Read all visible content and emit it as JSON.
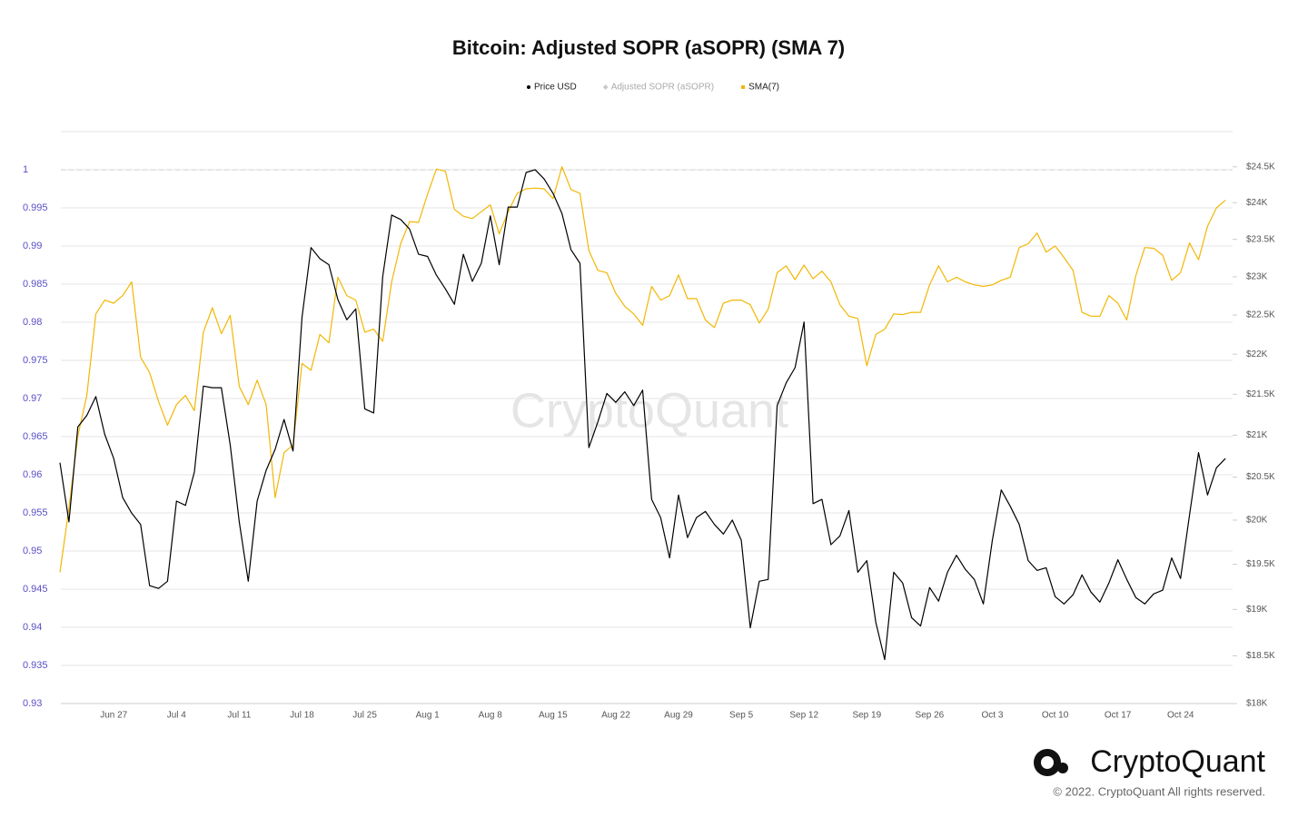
{
  "chart_data": {
    "type": "line",
    "title": "Bitcoin: Adjusted SOPR (aSOPR) (SMA 7)",
    "categories": [
      null,
      null,
      null,
      null,
      null,
      null,
      "Jun 27",
      null,
      null,
      null,
      null,
      null,
      null,
      "Jul 4",
      null,
      null,
      null,
      null,
      null,
      null,
      "Jul 11",
      null,
      null,
      null,
      null,
      null,
      null,
      "Jul 18",
      null,
      null,
      null,
      null,
      null,
      null,
      "Jul 25",
      null,
      null,
      null,
      null,
      null,
      null,
      "Aug 1",
      null,
      null,
      null,
      null,
      null,
      null,
      "Aug 8",
      null,
      null,
      null,
      null,
      null,
      null,
      "Aug 15",
      null,
      null,
      null,
      null,
      null,
      null,
      "Aug 22",
      null,
      null,
      null,
      null,
      null,
      null,
      "Aug 29",
      null,
      null,
      null,
      null,
      null,
      null,
      "Sep 5",
      null,
      null,
      null,
      null,
      null,
      null,
      "Sep 12",
      null,
      null,
      null,
      null,
      null,
      null,
      "Sep 19",
      null,
      null,
      null,
      null,
      null,
      null,
      "Sep 26",
      null,
      null,
      null,
      null,
      null,
      null,
      "Oct 3",
      null,
      null,
      null,
      null,
      null,
      null,
      "Oct 10",
      null,
      null,
      null,
      null,
      null,
      null,
      "Oct 17",
      null,
      null,
      null,
      null,
      null,
      null,
      "Oct 24",
      null,
      null,
      null,
      null,
      null
    ],
    "series": [
      {
        "name": "Price USD",
        "color": "#000000",
        "axis": "y2",
        "visible": true,
        "values": [
          20670,
          19980,
          21100,
          21240,
          21470,
          21010,
          20720,
          20260,
          20080,
          19950,
          19260,
          19230,
          19310,
          20220,
          20170,
          20560,
          21600,
          21580,
          21580,
          20880,
          19980,
          19310,
          20220,
          20580,
          20830,
          21190,
          20810,
          22470,
          23390,
          23240,
          23160,
          22700,
          22440,
          22580,
          21320,
          21270,
          23000,
          23830,
          23770,
          23640,
          23300,
          23270,
          23020,
          22840,
          22640,
          23300,
          22940,
          23180,
          23820,
          23160,
          23940,
          23940,
          24420,
          24460,
          24330,
          24130,
          23850,
          23360,
          23180,
          20850,
          21160,
          21510,
          21400,
          21530,
          21360,
          21550,
          20240,
          20030,
          19570,
          20290,
          19800,
          20030,
          20100,
          19950,
          19840,
          20000,
          19770,
          18800,
          19310,
          19330,
          21360,
          21640,
          21830,
          22410,
          20190,
          20240,
          19720,
          19820,
          20110,
          19410,
          19540,
          18860,
          18460,
          19410,
          19290,
          18910,
          18820,
          19240,
          19090,
          19410,
          19600,
          19440,
          19330,
          19060,
          19770,
          20350,
          20160,
          19950,
          19540,
          19430,
          19460,
          19140,
          19060,
          19160,
          19380,
          19190,
          19080,
          19290,
          19550,
          19330,
          19130,
          19060,
          19170,
          19210,
          19570,
          19340,
          20060,
          20790,
          20290,
          20610,
          20720
        ]
      },
      {
        "name": "Adjusted SOPR (aSOPR)",
        "color": "#aaaaaa",
        "visible": false
      },
      {
        "name": "SMA(7)",
        "color": "#f2b705",
        "visible": true,
        "values": [
          0.9472,
          0.9556,
          0.9651,
          0.9704,
          0.9811,
          0.9829,
          0.9825,
          0.9835,
          0.9853,
          0.9754,
          0.9734,
          0.9696,
          0.9665,
          0.9692,
          0.9704,
          0.9684,
          0.9787,
          0.9819,
          0.9785,
          0.9809,
          0.9716,
          0.9692,
          0.9724,
          0.9692,
          0.957,
          0.9629,
          0.9639,
          0.9746,
          0.9737,
          0.9784,
          0.9773,
          0.9859,
          0.9835,
          0.9829,
          0.9787,
          0.9791,
          0.9775,
          0.9853,
          0.9903,
          0.9932,
          0.9931,
          0.9968,
          1.0001,
          0.9998,
          0.9948,
          0.9939,
          0.9936,
          0.9945,
          0.9954,
          0.9916,
          0.9945,
          0.9969,
          0.9975,
          0.9976,
          0.9975,
          0.9962,
          1.0004,
          0.9974,
          0.9969,
          0.9894,
          0.9868,
          0.9865,
          0.9838,
          0.9821,
          0.9811,
          0.9796,
          0.9847,
          0.9829,
          0.9835,
          0.9862,
          0.9831,
          0.9831,
          0.9803,
          0.9793,
          0.9825,
          0.9829,
          0.9829,
          0.9823,
          0.9799,
          0.9817,
          0.9865,
          0.9874,
          0.9856,
          0.9875,
          0.9857,
          0.9867,
          0.9853,
          0.9823,
          0.9808,
          0.9805,
          0.9743,
          0.9784,
          0.9791,
          0.9811,
          0.981,
          0.9813,
          0.9813,
          0.9849,
          0.9874,
          0.9853,
          0.9859,
          0.9853,
          0.9849,
          0.9847,
          0.9849,
          0.9855,
          0.9859,
          0.9898,
          0.9903,
          0.9917,
          0.9892,
          0.99,
          0.9885,
          0.9868,
          0.9813,
          0.9808,
          0.9808,
          0.9835,
          0.9825,
          0.9803,
          0.9861,
          0.9898,
          0.9897,
          0.9888,
          0.9855,
          0.9865,
          0.9904,
          0.9882,
          0.9926,
          0.995,
          0.996
        ]
      }
    ],
    "ylim": [
      0.93,
      1.005
    ],
    "yticks": [
      0.93,
      0.935,
      0.94,
      0.945,
      0.95,
      0.955,
      0.96,
      0.965,
      0.97,
      0.975,
      0.98,
      0.985,
      0.99,
      0.995,
      1
    ],
    "reference_line": 1,
    "y2lim": [
      18000,
      25000
    ],
    "y2log": true,
    "y2ticks": [
      {
        "value": 18000,
        "label": "$18K"
      },
      {
        "value": 18500,
        "label": "$18.5K"
      },
      {
        "value": 19000,
        "label": "$19K"
      },
      {
        "value": 19500,
        "label": "$19.5K"
      },
      {
        "value": 20000,
        "label": "$20K"
      },
      {
        "value": 20500,
        "label": "$20.5K"
      },
      {
        "value": 21000,
        "label": "$21K"
      },
      {
        "value": 21500,
        "label": "$21.5K"
      },
      {
        "value": 22000,
        "label": "$22K"
      },
      {
        "value": 22500,
        "label": "$22.5K"
      },
      {
        "value": 23000,
        "label": "$23K"
      },
      {
        "value": 23500,
        "label": "$23.5K"
      },
      {
        "value": 24000,
        "label": "$24K"
      },
      {
        "value": 24500,
        "label": "$24.5K"
      }
    ],
    "grid": true,
    "legend": "top"
  },
  "watermark": "CryptoQuant",
  "brand": "CryptoQuant",
  "copyright": "© 2022. CryptoQuant All rights reserved."
}
